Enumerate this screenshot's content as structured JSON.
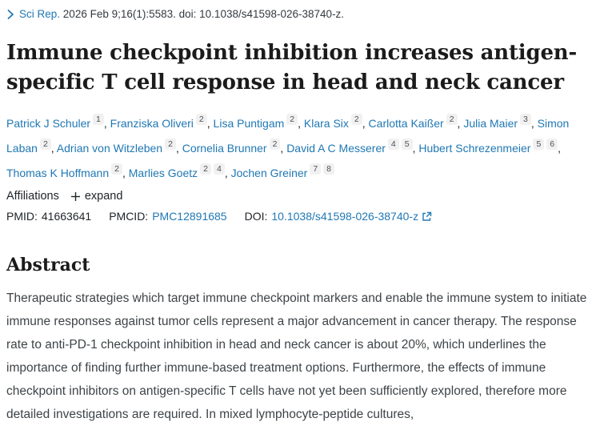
{
  "colors": {
    "link": "#2078b4",
    "heading": "#1b1b1b",
    "body": "#3e4347",
    "chip_bg": "#f1f1f1"
  },
  "citation": {
    "journal": "Sci Rep.",
    "rest": "2026 Feb 9;16(1):5583. doi: 10.1038/s41598-026-38740-z."
  },
  "title": "Immune checkpoint inhibition increases antigen-specific T cell response in head and neck cancer",
  "authors": [
    {
      "name": "Patrick J Schuler",
      "sups": [
        "1"
      ]
    },
    {
      "name": "Franziska Oliveri",
      "sups": [
        "2"
      ]
    },
    {
      "name": "Lisa Puntigam",
      "sups": [
        "2"
      ]
    },
    {
      "name": "Klara Six",
      "sups": [
        "2"
      ]
    },
    {
      "name": "Carlotta Kaißer",
      "sups": [
        "2"
      ]
    },
    {
      "name": "Julia Maier",
      "sups": [
        "3"
      ]
    },
    {
      "name": "Simon Laban",
      "sups": [
        "2"
      ]
    },
    {
      "name": "Adrian von Witzleben",
      "sups": [
        "2"
      ]
    },
    {
      "name": "Cornelia Brunner",
      "sups": [
        "2"
      ]
    },
    {
      "name": "David A C Messerer",
      "sups": [
        "4",
        "5"
      ]
    },
    {
      "name": "Hubert Schrezenmeier",
      "sups": [
        "5",
        "6"
      ]
    },
    {
      "name": "Thomas K Hoffmann",
      "sups": [
        "2"
      ]
    },
    {
      "name": "Marlies Goetz",
      "sups": [
        "2",
        "4"
      ]
    },
    {
      "name": "Jochen Greiner",
      "sups": [
        "7",
        "8"
      ]
    }
  ],
  "affiliations": {
    "label": "Affiliations",
    "expand_label": "expand"
  },
  "ids": {
    "pmid_label": "PMID:",
    "pmid_value": "41663641",
    "pmcid_label": "PMCID:",
    "pmcid_value": "PMC12891685",
    "doi_label": "DOI:",
    "doi_value": "10.1038/s41598-026-38740-z"
  },
  "abstract": {
    "heading": "Abstract",
    "text": "Therapeutic strategies which target immune checkpoint markers and enable the immune system to initiate immune responses against tumor cells represent a major advancement in cancer therapy. The response rate to anti-PD-1 checkpoint inhibition in head and neck cancer is about 20%, which underlines the importance of finding further immune-based treatment options. Furthermore, the effects of immune checkpoint inhibitors on antigen-specific T cells have not yet been sufficiently explored, therefore more detailed investigations are required. In mixed lymphocyte-peptide cultures,"
  }
}
